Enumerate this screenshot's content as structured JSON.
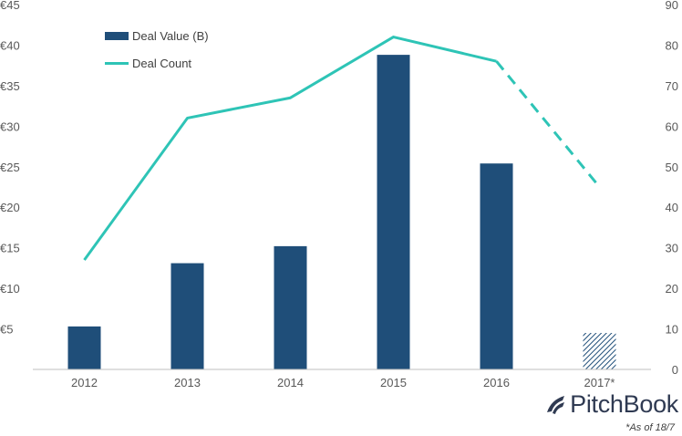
{
  "chart_data": {
    "type": "bar",
    "categories": [
      "2012",
      "2013",
      "2014",
      "2015",
      "2016",
      "2017*"
    ],
    "series": [
      {
        "name": "Deal Value (B)",
        "kind": "bar",
        "axis": "left",
        "values": [
          5.3,
          13.1,
          15.2,
          38.8,
          25.4,
          4.5
        ],
        "color": "#1f4e79",
        "hatched_last": true
      },
      {
        "name": "Deal Count",
        "kind": "line",
        "axis": "right",
        "values": [
          27,
          62,
          67,
          82,
          76,
          45
        ],
        "color": "#2ec4b6",
        "dashed_last_segment": true
      }
    ],
    "y_left": {
      "ylim": [
        0,
        45
      ],
      "ticks": [
        {
          "v": 5,
          "label": "€5"
        },
        {
          "v": 10,
          "label": "€10"
        },
        {
          "v": 15,
          "label": "€15"
        },
        {
          "v": 20,
          "label": "€20"
        },
        {
          "v": 25,
          "label": "€25"
        },
        {
          "v": 30,
          "label": "€30"
        },
        {
          "v": 35,
          "label": "€35"
        },
        {
          "v": 40,
          "label": "€40"
        },
        {
          "v": 45,
          "label": "€45"
        }
      ]
    },
    "y_right": {
      "ylim": [
        0,
        90
      ],
      "ticks": [
        0,
        10,
        20,
        30,
        40,
        50,
        60,
        70,
        80,
        90
      ]
    },
    "legend_position": "top-left",
    "grid": false
  },
  "legend": {
    "bar_label": "Deal Value (B)",
    "line_label": "Deal Count"
  },
  "brand": {
    "name": "PitchBook"
  },
  "footnote": "*As of 18/7",
  "colors": {
    "bar": "#1f4e79",
    "line": "#2ec4b6",
    "axis": "#bfbfbf",
    "text": "#595959"
  }
}
